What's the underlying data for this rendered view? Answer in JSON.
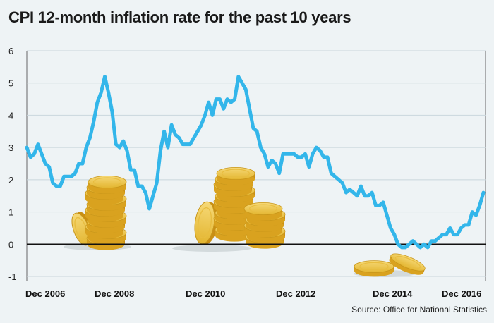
{
  "chart_data": {
    "type": "line",
    "title": "CPI 12-month inflation rate for the past 10 years",
    "source": "Source: Office for National Statistics",
    "xlabel": "",
    "ylabel": "",
    "ylim": [
      -1,
      6
    ],
    "yticks": [
      6,
      5,
      4,
      3,
      2,
      1,
      0,
      -1
    ],
    "xtick_labels": [
      "Dec 2006",
      "Dec 2008",
      "Dec 2010",
      "Dec 2012",
      "Dec 2014",
      "Dec 2016"
    ],
    "x_start": "Dec 2006",
    "series": [
      {
        "name": "CPI 12-month inflation rate",
        "color": "#33b6ea",
        "values": [
          3.0,
          2.7,
          2.8,
          3.1,
          2.8,
          2.5,
          2.4,
          1.9,
          1.8,
          1.8,
          2.1,
          2.1,
          2.1,
          2.2,
          2.5,
          2.5,
          3.0,
          3.3,
          3.8,
          4.4,
          4.7,
          5.2,
          4.7,
          4.1,
          3.1,
          3.0,
          3.2,
          2.9,
          2.3,
          2.3,
          1.8,
          1.8,
          1.6,
          1.1,
          1.5,
          1.9,
          2.9,
          3.5,
          3.0,
          3.7,
          3.4,
          3.3,
          3.1,
          3.1,
          3.1,
          3.3,
          3.5,
          3.7,
          4.0,
          4.4,
          4.0,
          4.5,
          4.5,
          4.2,
          4.5,
          4.4,
          4.5,
          5.2,
          5.0,
          4.8,
          4.2,
          3.6,
          3.5,
          3.0,
          2.8,
          2.4,
          2.6,
          2.5,
          2.2,
          2.8,
          2.8,
          2.8,
          2.8,
          2.7,
          2.7,
          2.8,
          2.4,
          2.8,
          3.0,
          2.9,
          2.7,
          2.7,
          2.2,
          2.1,
          2.0,
          1.9,
          1.6,
          1.7,
          1.6,
          1.5,
          1.8,
          1.5,
          1.5,
          1.6,
          1.2,
          1.2,
          1.3,
          0.9,
          0.5,
          0.3,
          0.0,
          -0.1,
          -0.1,
          0.0,
          0.1,
          0.0,
          -0.1,
          0.0,
          -0.1,
          0.1,
          0.1,
          0.2,
          0.3,
          0.3,
          0.5,
          0.3,
          0.3,
          0.5,
          0.6,
          0.6,
          1.0,
          0.9,
          1.2,
          1.6
        ]
      }
    ],
    "decorations": [
      "gold-coin-stacks"
    ]
  }
}
